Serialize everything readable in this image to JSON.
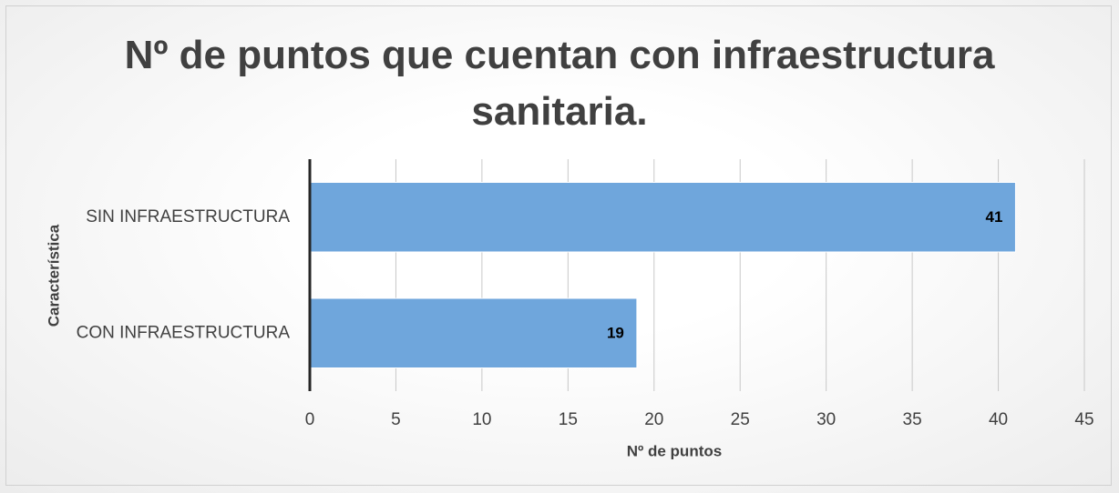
{
  "chart_data": {
    "type": "bar",
    "orientation": "horizontal",
    "title": "Nº de puntos que cuentan con infraestructura sanitaria.",
    "x_label": "Nº de puntos",
    "y_label": "Característica",
    "categories": [
      "SIN INFRAESTRUCTURA",
      "CON INFRAESTRUCTURA"
    ],
    "values": [
      41,
      19
    ],
    "color": "#6fa6dc",
    "xlim": [
      0,
      45
    ],
    "xticks": [
      0,
      5,
      10,
      15,
      20,
      25,
      30,
      35,
      40,
      45
    ],
    "grid": true
  }
}
